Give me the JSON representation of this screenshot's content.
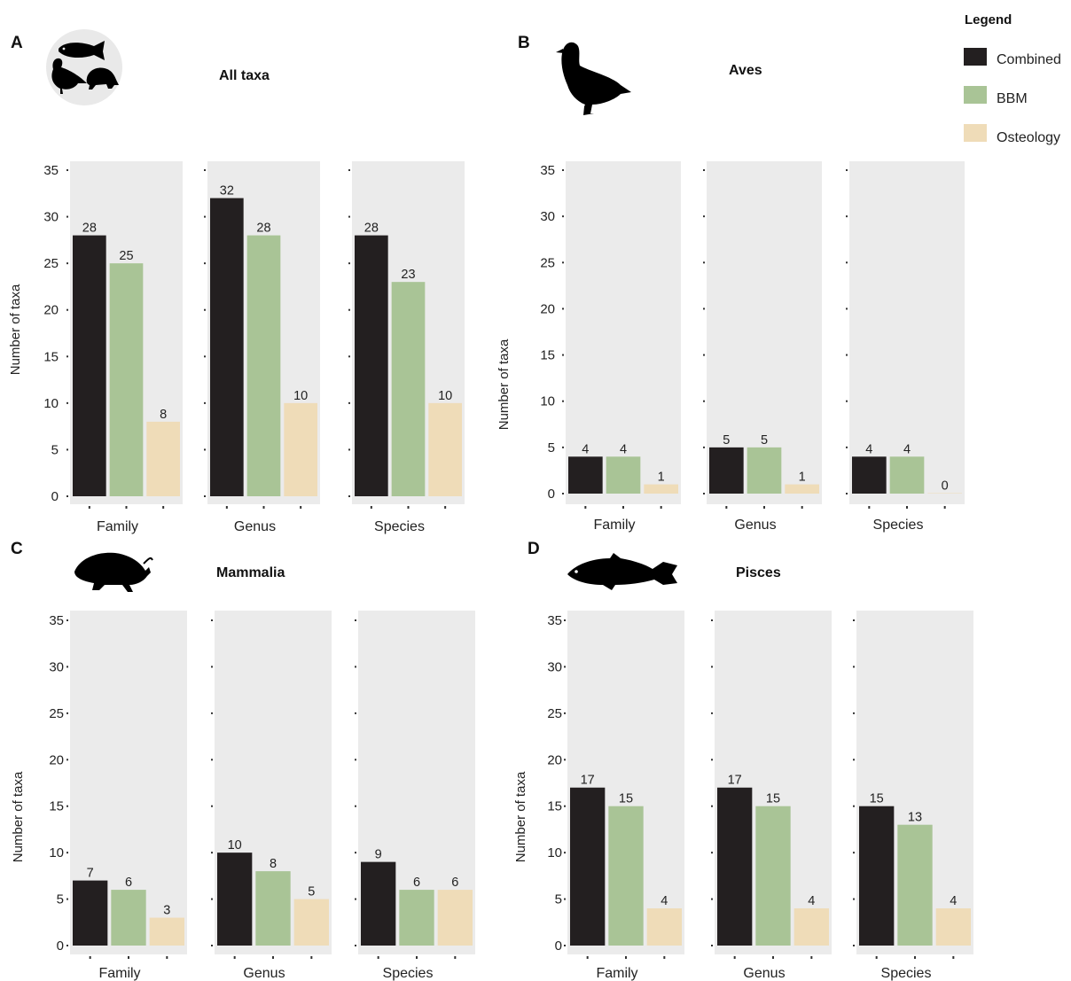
{
  "legend": {
    "title": "Legend",
    "items": [
      {
        "label": "Combined",
        "color": "#231f20"
      },
      {
        "label": "BBM",
        "color": "#a9c496"
      },
      {
        "label": "Osteology",
        "color": "#efdcb8"
      }
    ]
  },
  "chart_data": [
    {
      "type": "bar",
      "panel": "A",
      "title": "All taxa",
      "icon": "all-taxa-icon",
      "ylabel": "Number of taxa",
      "ylim": [
        0,
        35
      ],
      "yticks": [
        "0",
        "5",
        "10",
        "15",
        "20",
        "25",
        "30",
        "35"
      ],
      "categories": [
        "Family",
        "Genus",
        "Species"
      ],
      "series": [
        {
          "name": "Combined",
          "values": [
            28,
            32,
            28
          ]
        },
        {
          "name": "BBM",
          "values": [
            25,
            28,
            23
          ]
        },
        {
          "name": "Osteology",
          "values": [
            8,
            10,
            10
          ]
        }
      ],
      "labels": [
        [
          "28",
          "25",
          "8"
        ],
        [
          "32",
          "28",
          "10"
        ],
        [
          "28",
          "23",
          "10"
        ]
      ]
    },
    {
      "type": "bar",
      "panel": "B",
      "title": "Aves",
      "icon": "bird-icon",
      "ylabel": "Number of taxa",
      "ylim": [
        0,
        35
      ],
      "yticks": [
        "0",
        "5",
        "10",
        "15",
        "20",
        "25",
        "30",
        "35"
      ],
      "categories": [
        "Family",
        "Genus",
        "Species"
      ],
      "series": [
        {
          "name": "Combined",
          "values": [
            4,
            5,
            4
          ]
        },
        {
          "name": "BBM",
          "values": [
            4,
            5,
            4
          ]
        },
        {
          "name": "Osteology",
          "values": [
            1,
            1,
            0
          ]
        }
      ],
      "labels": [
        [
          "4",
          "4",
          "1"
        ],
        [
          "5",
          "5",
          "1"
        ],
        [
          "4",
          "4",
          "0"
        ]
      ]
    },
    {
      "type": "bar",
      "panel": "C",
      "title": "Mammalia",
      "icon": "mole-icon",
      "ylabel": "Number of taxa",
      "ylim": [
        0,
        35
      ],
      "yticks": [
        "0",
        "5",
        "10",
        "15",
        "20",
        "25",
        "30",
        "35"
      ],
      "categories": [
        "Family",
        "Genus",
        "Species"
      ],
      "series": [
        {
          "name": "Combined",
          "values": [
            7,
            10,
            9
          ]
        },
        {
          "name": "BBM",
          "values": [
            6,
            8,
            6
          ]
        },
        {
          "name": "Osteology",
          "values": [
            3,
            5,
            6
          ]
        }
      ],
      "labels": [
        [
          "7",
          "6",
          "3"
        ],
        [
          "10",
          "8",
          "5"
        ],
        [
          "9",
          "6",
          "6"
        ]
      ]
    },
    {
      "type": "bar",
      "panel": "D",
      "title": "Pisces",
      "icon": "fish-icon",
      "ylabel": "Number of taxa",
      "ylim": [
        0,
        35
      ],
      "yticks": [
        "0",
        "5",
        "10",
        "15",
        "20",
        "25",
        "30",
        "35"
      ],
      "categories": [
        "Family",
        "Genus",
        "Species"
      ],
      "series": [
        {
          "name": "Combined",
          "values": [
            17,
            17,
            15
          ]
        },
        {
          "name": "BBM",
          "values": [
            15,
            15,
            13
          ]
        },
        {
          "name": "Osteology",
          "values": [
            4,
            4,
            4
          ]
        }
      ],
      "labels": [
        [
          "17",
          "15",
          "4"
        ],
        [
          "17",
          "15",
          "4"
        ],
        [
          "15",
          "13",
          "4"
        ]
      ]
    }
  ]
}
